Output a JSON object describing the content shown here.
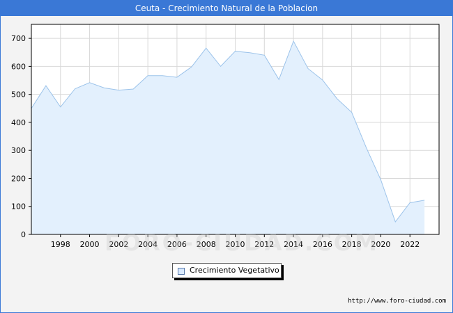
{
  "window": {
    "title": "Ceuta - Crecimiento Natural de la Poblacion"
  },
  "source_text": "http://www.foro-ciudad.com",
  "watermark_text": "FORO-CIUDAD.COM",
  "colors": {
    "titlebar": "#3a78d6",
    "area_fill": "#e3f0fd",
    "line": "#9cc3ea",
    "grid": "#d8d8d8"
  },
  "chart_data": {
    "type": "area",
    "title": "Ceuta - Crecimiento Natural de la Poblacion",
    "xlabel": "",
    "ylabel": "",
    "x": [
      1996,
      1997,
      1998,
      1999,
      2000,
      2001,
      2002,
      2003,
      2004,
      2005,
      2006,
      2007,
      2008,
      2009,
      2010,
      2011,
      2012,
      2013,
      2014,
      2015,
      2016,
      2017,
      2018,
      2019,
      2020,
      2021,
      2022,
      2023
    ],
    "series": [
      {
        "name": "Crecimiento Vegetativo",
        "values": [
          450,
          531,
          455,
          520,
          542,
          523,
          515,
          519,
          567,
          567,
          561,
          598,
          665,
          600,
          654,
          649,
          640,
          553,
          690,
          592,
          551,
          484,
          436,
          310,
          195,
          45,
          113,
          122
        ]
      }
    ],
    "xticks": [
      1998,
      2000,
      2002,
      2004,
      2006,
      2008,
      2010,
      2012,
      2014,
      2016,
      2018,
      2020,
      2022
    ],
    "yticks": [
      0,
      100,
      200,
      300,
      400,
      500,
      600,
      700
    ],
    "xlim": [
      1996,
      2024
    ],
    "ylim": [
      0,
      750
    ],
    "grid": true,
    "legend_position": "bottom-center"
  }
}
